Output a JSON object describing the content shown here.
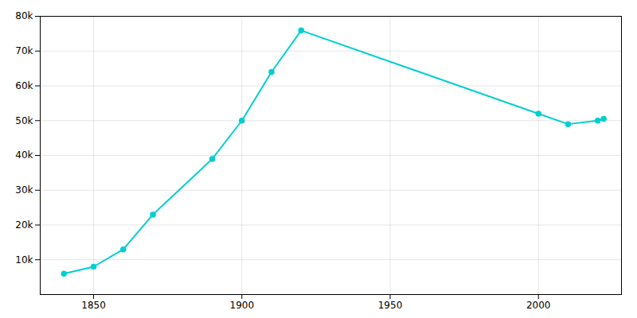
{
  "chart_data": {
    "type": "line",
    "x": [
      1840,
      1850,
      1860,
      1870,
      1890,
      1900,
      1910,
      1920,
      2000,
      2010,
      2020,
      2022
    ],
    "values": [
      6000,
      8000,
      13000,
      23000,
      39000,
      50000,
      64000,
      75917,
      52000,
      49000,
      50000,
      50500
    ],
    "color": "#00CED1",
    "marker": "circle",
    "line_style": "solid",
    "xlim": [
      1832,
      2028
    ],
    "xticks": [
      1850,
      1900,
      1950,
      2000
    ],
    "ylim": [
      0,
      80000
    ],
    "yticks": [
      {
        "value": 10000,
        "label": "10k"
      },
      {
        "value": 20000,
        "label": "20k"
      },
      {
        "value": 30000,
        "label": "30k"
      },
      {
        "value": 40000,
        "label": "40k"
      },
      {
        "value": 50000,
        "label": "50k"
      },
      {
        "value": 60000,
        "label": "60k"
      },
      {
        "value": 70000,
        "label": "70k"
      },
      {
        "value": 80000,
        "label": "80k"
      }
    ],
    "grid": true
  }
}
